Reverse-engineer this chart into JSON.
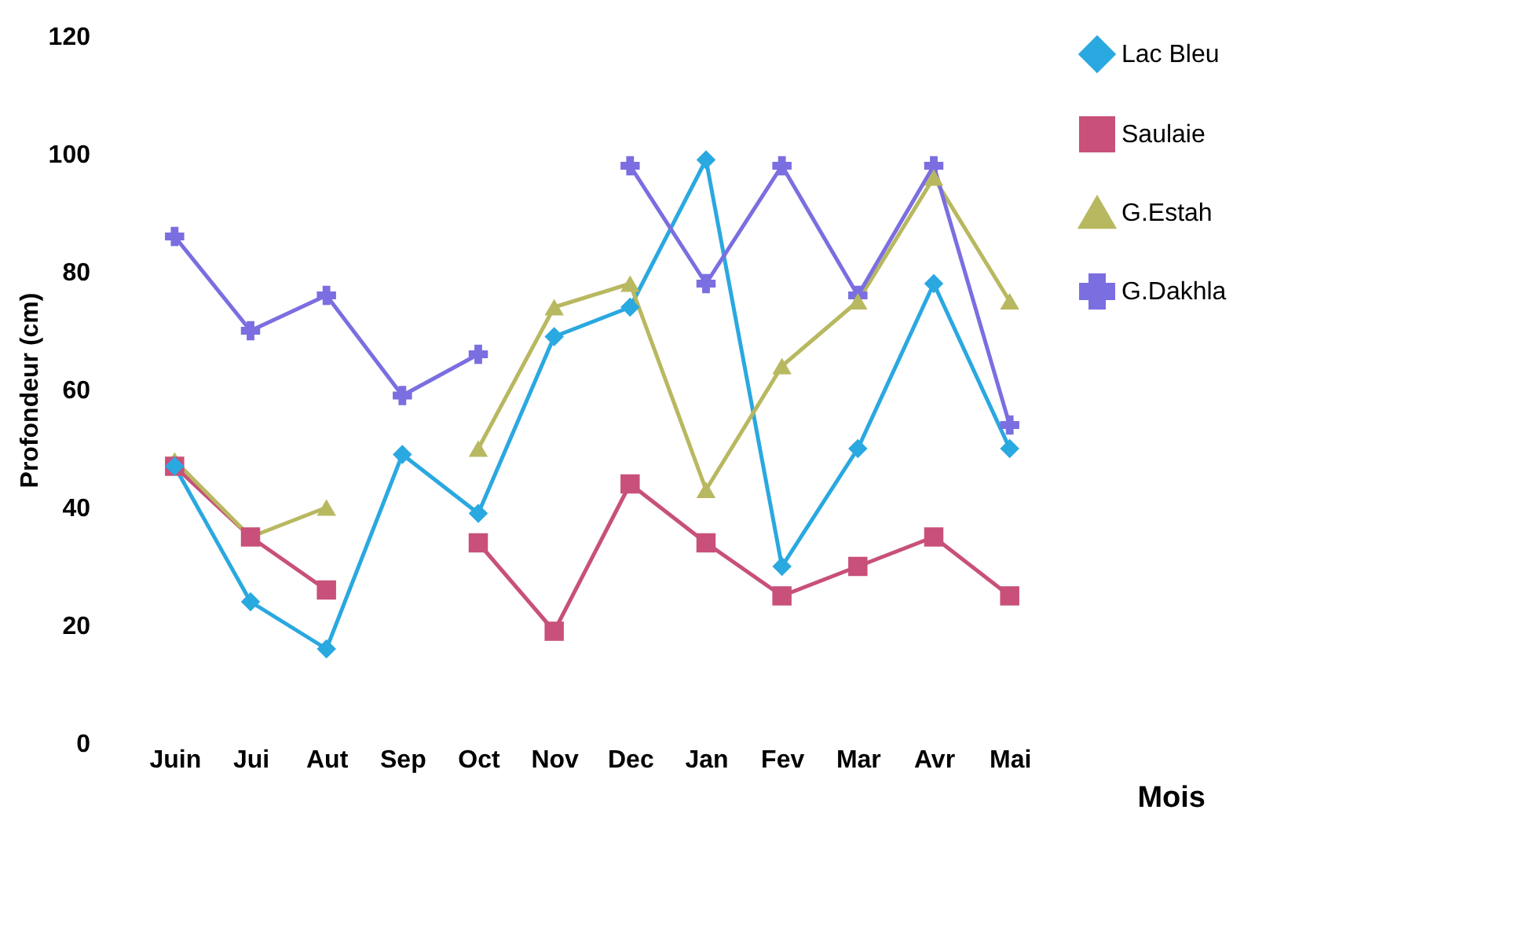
{
  "chart_data": {
    "type": "line",
    "xlabel": "Mois",
    "ylabel": "Profondeur (cm)",
    "categories": [
      "Juin",
      "Jui",
      "Aut",
      "Sep",
      "Oct",
      "Nov",
      "Dec",
      "Jan",
      "Fev",
      "Mar",
      "Avr",
      "Mai"
    ],
    "series": [
      {
        "name": "Lac Bleu",
        "color": "#2aa8e0",
        "marker": "diamond",
        "values": [
          47,
          24,
          16,
          49,
          39,
          69,
          74,
          99,
          30,
          50,
          78,
          50
        ]
      },
      {
        "name": "Saulaie",
        "color": "#c8507a",
        "marker": "square",
        "values": [
          47,
          35,
          26,
          null,
          34,
          19,
          44,
          34,
          25,
          30,
          35,
          25
        ]
      },
      {
        "name": "G.Estah",
        "color": "#b8b860",
        "marker": "triangle",
        "values": [
          48,
          35,
          40,
          null,
          50,
          74,
          78,
          43,
          64,
          75,
          96,
          75
        ]
      },
      {
        "name": "G.Dakhla",
        "color": "#7b6ee0",
        "marker": "cross",
        "values": [
          86,
          70,
          76,
          59,
          66,
          null,
          98,
          78,
          98,
          76,
          98,
          54
        ]
      }
    ],
    "ylim": [
      0,
      120
    ],
    "yticks": [
      0,
      20,
      40,
      60,
      80,
      100,
      120
    ],
    "grid": false,
    "legend": "top right",
    "line_style": "solid"
  }
}
